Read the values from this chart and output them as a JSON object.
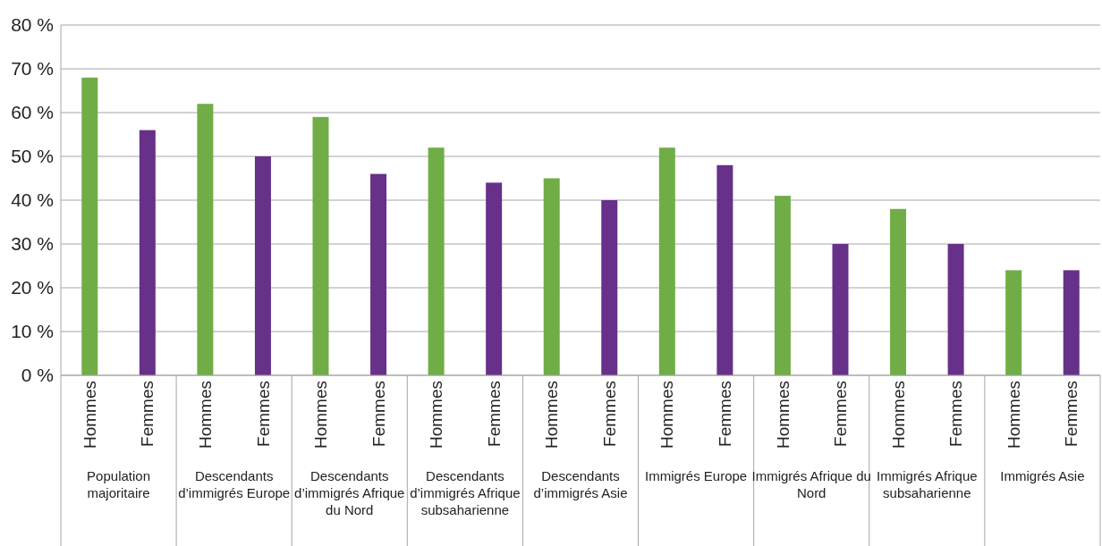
{
  "chart_data": {
    "type": "bar",
    "categories": [
      "Population majoritaire",
      "Descendants d’immigrés Europe",
      "Descendants d’immigrés Afrique du Nord",
      "Descendants d’immigrés Afrique subsaharienne",
      "Descendants d’immigrés Asie",
      "Immigrés Europe",
      "Immigrés Afrique du Nord",
      "Immigrés Afrique subsaharienne",
      "Immigrés Asie"
    ],
    "series": [
      {
        "name": "Hommes",
        "color": "#70ad47",
        "values": [
          68,
          62,
          59,
          52,
          45,
          52,
          41,
          38,
          24
        ]
      },
      {
        "name": "Femmes",
        "color": "#673089",
        "values": [
          56,
          50,
          46,
          44,
          40,
          48,
          30,
          30,
          24
        ]
      }
    ],
    "ylim": [
      0,
      80
    ],
    "yticks": [
      {
        "value": 0,
        "label": "0 %"
      },
      {
        "value": 10,
        "label": "10 %"
      },
      {
        "value": 20,
        "label": "20 %"
      },
      {
        "value": 30,
        "label": "30 %"
      },
      {
        "value": 40,
        "label": "40 %"
      },
      {
        "value": 50,
        "label": "50 %"
      },
      {
        "value": 60,
        "label": "60 %"
      },
      {
        "value": 70,
        "label": "70 %"
      },
      {
        "value": 80,
        "label": "80 %"
      }
    ],
    "grid": true
  }
}
